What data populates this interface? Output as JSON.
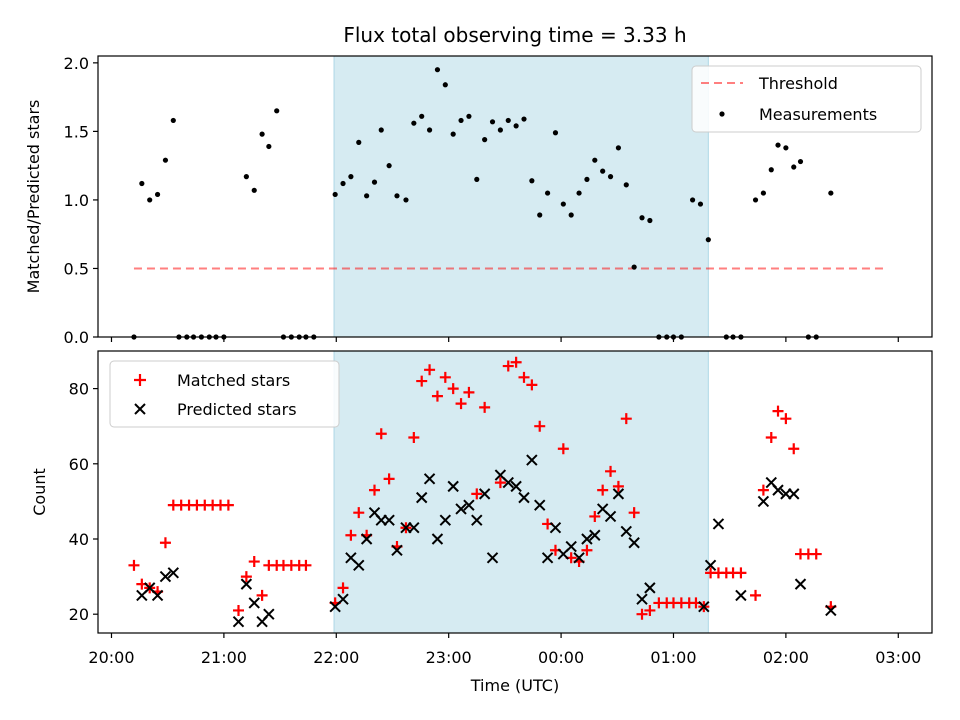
{
  "title": "Flux total observing time = 3.33 h",
  "colors": {
    "shade": "#add8e6",
    "threshold": "#ff0000",
    "measurement": "#000000",
    "matched": "#ff0000",
    "predicted": "#000000"
  },
  "chart_data": [
    {
      "type": "scatter",
      "panel": "top",
      "title": "Flux total observing time = 3.33 h",
      "xlabel": "",
      "ylabel": "Matched/Predicted stars",
      "x_unit": "hours relative to 00:00 UTC",
      "xlim": [
        -4.12,
        3.3
      ],
      "ylim": [
        0.0,
        2.05
      ],
      "yticks": [
        "0.0",
        "0.5",
        "1.0",
        "1.5",
        "2.0"
      ],
      "shaded_x_range": [
        -2.02,
        1.31
      ],
      "threshold": {
        "name": "Threshold",
        "y": 0.5,
        "x_range": [
          -3.8,
          2.9
        ]
      },
      "legend": {
        "position": "top-right",
        "entries": [
          "Threshold",
          "Measurements"
        ]
      },
      "series": [
        {
          "name": "Measurements",
          "marker": "dot",
          "points": [
            [
              -3.8,
              0.0
            ],
            [
              -3.73,
              1.12
            ],
            [
              -3.66,
              1.0
            ],
            [
              -3.59,
              1.04
            ],
            [
              -3.52,
              1.29
            ],
            [
              -3.45,
              1.58
            ],
            [
              -3.4,
              0.0
            ],
            [
              -3.33,
              0.0
            ],
            [
              -3.27,
              0.0
            ],
            [
              -3.2,
              0.0
            ],
            [
              -3.13,
              0.0
            ],
            [
              -3.07,
              0.0
            ],
            [
              -3.0,
              0.0
            ],
            [
              -2.8,
              1.17
            ],
            [
              -2.73,
              1.07
            ],
            [
              -2.66,
              1.48
            ],
            [
              -2.6,
              1.39
            ],
            [
              -2.53,
              1.65
            ],
            [
              -2.47,
              0.0
            ],
            [
              -2.4,
              0.0
            ],
            [
              -2.33,
              0.0
            ],
            [
              -2.27,
              0.0
            ],
            [
              -2.2,
              0.0
            ],
            [
              -2.01,
              1.04
            ],
            [
              -1.94,
              1.12
            ],
            [
              -1.87,
              1.17
            ],
            [
              -1.8,
              1.42
            ],
            [
              -1.73,
              1.03
            ],
            [
              -1.66,
              1.13
            ],
            [
              -1.6,
              1.51
            ],
            [
              -1.53,
              1.25
            ],
            [
              -1.46,
              1.03
            ],
            [
              -1.38,
              1.0
            ],
            [
              -1.31,
              1.56
            ],
            [
              -1.24,
              1.61
            ],
            [
              -1.17,
              1.51
            ],
            [
              -1.1,
              1.95
            ],
            [
              -1.03,
              1.84
            ],
            [
              -0.96,
              1.48
            ],
            [
              -0.89,
              1.58
            ],
            [
              -0.82,
              1.61
            ],
            [
              -0.75,
              1.15
            ],
            [
              -0.68,
              1.44
            ],
            [
              -0.61,
              1.57
            ],
            [
              -0.54,
              1.51
            ],
            [
              -0.47,
              1.58
            ],
            [
              -0.4,
              1.54
            ],
            [
              -0.33,
              1.59
            ],
            [
              -0.26,
              1.14
            ],
            [
              -0.19,
              0.89
            ],
            [
              -0.12,
              1.05
            ],
            [
              -0.05,
              1.49
            ],
            [
              0.02,
              0.97
            ],
            [
              0.09,
              0.89
            ],
            [
              0.16,
              1.05
            ],
            [
              0.23,
              1.15
            ],
            [
              0.3,
              1.29
            ],
            [
              0.37,
              1.21
            ],
            [
              0.44,
              1.17
            ],
            [
              0.51,
              1.38
            ],
            [
              0.58,
              1.11
            ],
            [
              0.65,
              0.51
            ],
            [
              0.72,
              0.87
            ],
            [
              0.79,
              0.85
            ],
            [
              0.87,
              0.0
            ],
            [
              0.94,
              0.0
            ],
            [
              1.0,
              0.0
            ],
            [
              1.07,
              0.0
            ],
            [
              1.17,
              1.0
            ],
            [
              1.24,
              0.97
            ],
            [
              1.31,
              0.71
            ],
            [
              1.47,
              0.0
            ],
            [
              1.53,
              0.0
            ],
            [
              1.6,
              0.0
            ],
            [
              1.73,
              1.0
            ],
            [
              1.8,
              1.05
            ],
            [
              1.87,
              1.22
            ],
            [
              1.93,
              1.4
            ],
            [
              2.0,
              1.38
            ],
            [
              2.07,
              1.24
            ],
            [
              2.13,
              1.28
            ],
            [
              2.2,
              0.0
            ],
            [
              2.27,
              0.0
            ],
            [
              2.4,
              1.05
            ]
          ]
        }
      ]
    },
    {
      "type": "scatter",
      "panel": "bottom",
      "xlabel": "Time (UTC)",
      "ylabel": "Count",
      "x_unit": "hours relative to 00:00 UTC",
      "xlim": [
        -4.12,
        3.3
      ],
      "ylim": [
        15,
        90
      ],
      "yticks": [
        "20",
        "40",
        "60",
        "80"
      ],
      "xticks": [
        {
          "x": -4,
          "label": "20:00"
        },
        {
          "x": -3,
          "label": "21:00"
        },
        {
          "x": -2,
          "label": "22:00"
        },
        {
          "x": -1,
          "label": "23:00"
        },
        {
          "x": 0,
          "label": "00:00"
        },
        {
          "x": 1,
          "label": "01:00"
        },
        {
          "x": 2,
          "label": "02:00"
        },
        {
          "x": 3,
          "label": "03:00"
        }
      ],
      "shaded_x_range": [
        -2.02,
        1.31
      ],
      "legend": {
        "position": "top-left",
        "entries": [
          "Matched stars",
          "Predicted stars"
        ]
      },
      "series": [
        {
          "name": "Matched stars",
          "marker": "+",
          "points": [
            [
              -3.8,
              33
            ],
            [
              -3.73,
              28
            ],
            [
              -3.66,
              27
            ],
            [
              -3.59,
              26
            ],
            [
              -3.52,
              39
            ],
            [
              -3.45,
              49
            ],
            [
              -3.38,
              49
            ],
            [
              -3.31,
              49
            ],
            [
              -3.24,
              49
            ],
            [
              -3.17,
              49
            ],
            [
              -3.1,
              49
            ],
            [
              -3.03,
              49
            ],
            [
              -2.96,
              49
            ],
            [
              -2.87,
              21
            ],
            [
              -2.8,
              30
            ],
            [
              -2.73,
              34
            ],
            [
              -2.66,
              25
            ],
            [
              -2.6,
              33
            ],
            [
              -2.53,
              33
            ],
            [
              -2.47,
              33
            ],
            [
              -2.4,
              33
            ],
            [
              -2.33,
              33
            ],
            [
              -2.27,
              33
            ],
            [
              -2.01,
              23
            ],
            [
              -1.94,
              27
            ],
            [
              -1.87,
              41
            ],
            [
              -1.8,
              47
            ],
            [
              -1.73,
              41
            ],
            [
              -1.66,
              53
            ],
            [
              -1.6,
              68
            ],
            [
              -1.53,
              56
            ],
            [
              -1.46,
              38
            ],
            [
              -1.38,
              43
            ],
            [
              -1.31,
              67
            ],
            [
              -1.24,
              82
            ],
            [
              -1.17,
              85
            ],
            [
              -1.1,
              78
            ],
            [
              -1.03,
              83
            ],
            [
              -0.96,
              80
            ],
            [
              -0.89,
              76
            ],
            [
              -0.82,
              79
            ],
            [
              -0.75,
              52
            ],
            [
              -0.68,
              75
            ],
            [
              -0.54,
              55
            ],
            [
              -0.47,
              86
            ],
            [
              -0.4,
              87
            ],
            [
              -0.33,
              83
            ],
            [
              -0.26,
              81
            ],
            [
              -0.19,
              70
            ],
            [
              -0.12,
              44
            ],
            [
              -0.05,
              37
            ],
            [
              0.02,
              64
            ],
            [
              0.09,
              35
            ],
            [
              0.16,
              34
            ],
            [
              0.23,
              37
            ],
            [
              0.3,
              46
            ],
            [
              0.37,
              53
            ],
            [
              0.44,
              58
            ],
            [
              0.51,
              54
            ],
            [
              0.58,
              72
            ],
            [
              0.65,
              47
            ],
            [
              0.72,
              20
            ],
            [
              0.79,
              21
            ],
            [
              0.87,
              23
            ],
            [
              0.94,
              23
            ],
            [
              1.0,
              23
            ],
            [
              1.07,
              23
            ],
            [
              1.14,
              23
            ],
            [
              1.2,
              23
            ],
            [
              1.27,
              22
            ],
            [
              1.33,
              31
            ],
            [
              1.4,
              31
            ],
            [
              1.47,
              31
            ],
            [
              1.53,
              31
            ],
            [
              1.6,
              31
            ],
            [
              1.73,
              25
            ],
            [
              1.8,
              53
            ],
            [
              1.87,
              67
            ],
            [
              1.93,
              74
            ],
            [
              2.0,
              72
            ],
            [
              2.07,
              64
            ],
            [
              2.13,
              36
            ],
            [
              2.2,
              36
            ],
            [
              2.27,
              36
            ],
            [
              2.4,
              22
            ]
          ]
        },
        {
          "name": "Predicted stars",
          "marker": "x",
          "points": [
            [
              -3.73,
              25
            ],
            [
              -3.66,
              27
            ],
            [
              -3.59,
              25
            ],
            [
              -3.52,
              30
            ],
            [
              -3.45,
              31
            ],
            [
              -2.87,
              18
            ],
            [
              -2.8,
              28
            ],
            [
              -2.73,
              23
            ],
            [
              -2.66,
              18
            ],
            [
              -2.6,
              20
            ],
            [
              -2.01,
              22
            ],
            [
              -1.94,
              24
            ],
            [
              -1.87,
              35
            ],
            [
              -1.8,
              33
            ],
            [
              -1.73,
              40
            ],
            [
              -1.66,
              47
            ],
            [
              -1.6,
              45
            ],
            [
              -1.53,
              45
            ],
            [
              -1.46,
              37
            ],
            [
              -1.38,
              43
            ],
            [
              -1.31,
              43
            ],
            [
              -1.24,
              51
            ],
            [
              -1.17,
              56
            ],
            [
              -1.1,
              40
            ],
            [
              -1.03,
              45
            ],
            [
              -0.96,
              54
            ],
            [
              -0.89,
              48
            ],
            [
              -0.82,
              49
            ],
            [
              -0.75,
              45
            ],
            [
              -0.68,
              52
            ],
            [
              -0.61,
              35
            ],
            [
              -0.54,
              57
            ],
            [
              -0.47,
              55
            ],
            [
              -0.4,
              54
            ],
            [
              -0.33,
              51
            ],
            [
              -0.26,
              61
            ],
            [
              -0.19,
              49
            ],
            [
              -0.12,
              35
            ],
            [
              -0.05,
              43
            ],
            [
              0.02,
              36
            ],
            [
              0.09,
              38
            ],
            [
              0.16,
              35
            ],
            [
              0.23,
              40
            ],
            [
              0.3,
              41
            ],
            [
              0.37,
              48
            ],
            [
              0.44,
              46
            ],
            [
              0.51,
              52
            ],
            [
              0.58,
              42
            ],
            [
              0.65,
              39
            ],
            [
              0.72,
              24
            ],
            [
              0.79,
              27
            ],
            [
              1.27,
              22
            ],
            [
              1.33,
              33
            ],
            [
              1.4,
              44
            ],
            [
              1.6,
              25
            ],
            [
              1.8,
              50
            ],
            [
              1.87,
              55
            ],
            [
              1.93,
              53
            ],
            [
              2.0,
              52
            ],
            [
              2.07,
              52
            ],
            [
              2.13,
              28
            ],
            [
              2.4,
              21
            ]
          ]
        }
      ]
    }
  ]
}
